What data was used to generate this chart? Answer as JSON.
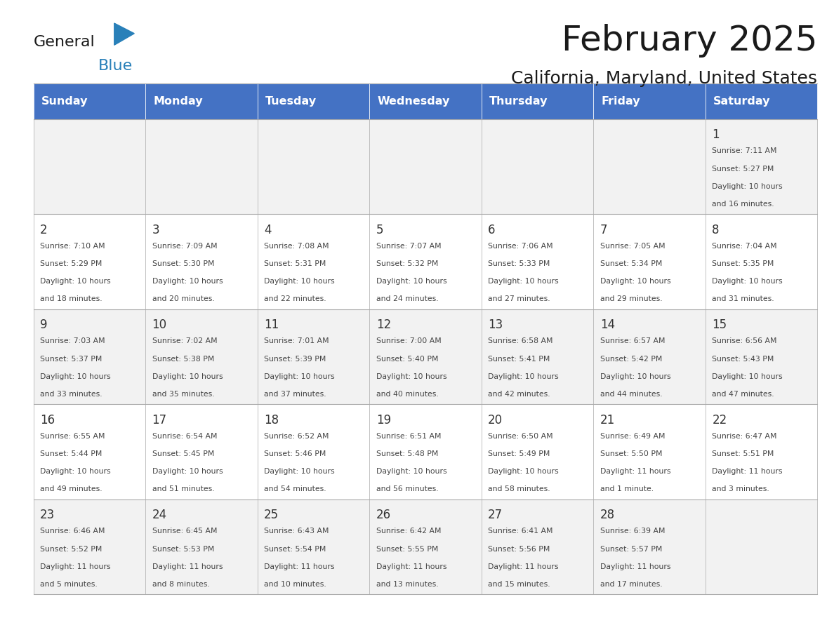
{
  "title": "February 2025",
  "subtitle": "California, Maryland, United States",
  "days_of_week": [
    "Sunday",
    "Monday",
    "Tuesday",
    "Wednesday",
    "Thursday",
    "Friday",
    "Saturday"
  ],
  "header_bg": "#4472C4",
  "header_text": "#FFFFFF",
  "row_bg_odd": "#F2F2F2",
  "row_bg_even": "#FFFFFF",
  "day_num_color": "#333333",
  "info_text_color": "#444444",
  "title_color": "#1a1a1a",
  "subtitle_color": "#1a1a1a",
  "logo_general_color": "#1a1a1a",
  "logo_blue_color": "#2980B9",
  "logo_triangle_color": "#2980B9",
  "weeks": [
    [
      {
        "day": null,
        "info": null
      },
      {
        "day": null,
        "info": null
      },
      {
        "day": null,
        "info": null
      },
      {
        "day": null,
        "info": null
      },
      {
        "day": null,
        "info": null
      },
      {
        "day": null,
        "info": null
      },
      {
        "day": 1,
        "info": "Sunrise: 7:11 AM\nSunset: 5:27 PM\nDaylight: 10 hours\nand 16 minutes."
      }
    ],
    [
      {
        "day": 2,
        "info": "Sunrise: 7:10 AM\nSunset: 5:29 PM\nDaylight: 10 hours\nand 18 minutes."
      },
      {
        "day": 3,
        "info": "Sunrise: 7:09 AM\nSunset: 5:30 PM\nDaylight: 10 hours\nand 20 minutes."
      },
      {
        "day": 4,
        "info": "Sunrise: 7:08 AM\nSunset: 5:31 PM\nDaylight: 10 hours\nand 22 minutes."
      },
      {
        "day": 5,
        "info": "Sunrise: 7:07 AM\nSunset: 5:32 PM\nDaylight: 10 hours\nand 24 minutes."
      },
      {
        "day": 6,
        "info": "Sunrise: 7:06 AM\nSunset: 5:33 PM\nDaylight: 10 hours\nand 27 minutes."
      },
      {
        "day": 7,
        "info": "Sunrise: 7:05 AM\nSunset: 5:34 PM\nDaylight: 10 hours\nand 29 minutes."
      },
      {
        "day": 8,
        "info": "Sunrise: 7:04 AM\nSunset: 5:35 PM\nDaylight: 10 hours\nand 31 minutes."
      }
    ],
    [
      {
        "day": 9,
        "info": "Sunrise: 7:03 AM\nSunset: 5:37 PM\nDaylight: 10 hours\nand 33 minutes."
      },
      {
        "day": 10,
        "info": "Sunrise: 7:02 AM\nSunset: 5:38 PM\nDaylight: 10 hours\nand 35 minutes."
      },
      {
        "day": 11,
        "info": "Sunrise: 7:01 AM\nSunset: 5:39 PM\nDaylight: 10 hours\nand 37 minutes."
      },
      {
        "day": 12,
        "info": "Sunrise: 7:00 AM\nSunset: 5:40 PM\nDaylight: 10 hours\nand 40 minutes."
      },
      {
        "day": 13,
        "info": "Sunrise: 6:58 AM\nSunset: 5:41 PM\nDaylight: 10 hours\nand 42 minutes."
      },
      {
        "day": 14,
        "info": "Sunrise: 6:57 AM\nSunset: 5:42 PM\nDaylight: 10 hours\nand 44 minutes."
      },
      {
        "day": 15,
        "info": "Sunrise: 6:56 AM\nSunset: 5:43 PM\nDaylight: 10 hours\nand 47 minutes."
      }
    ],
    [
      {
        "day": 16,
        "info": "Sunrise: 6:55 AM\nSunset: 5:44 PM\nDaylight: 10 hours\nand 49 minutes."
      },
      {
        "day": 17,
        "info": "Sunrise: 6:54 AM\nSunset: 5:45 PM\nDaylight: 10 hours\nand 51 minutes."
      },
      {
        "day": 18,
        "info": "Sunrise: 6:52 AM\nSunset: 5:46 PM\nDaylight: 10 hours\nand 54 minutes."
      },
      {
        "day": 19,
        "info": "Sunrise: 6:51 AM\nSunset: 5:48 PM\nDaylight: 10 hours\nand 56 minutes."
      },
      {
        "day": 20,
        "info": "Sunrise: 6:50 AM\nSunset: 5:49 PM\nDaylight: 10 hours\nand 58 minutes."
      },
      {
        "day": 21,
        "info": "Sunrise: 6:49 AM\nSunset: 5:50 PM\nDaylight: 11 hours\nand 1 minute."
      },
      {
        "day": 22,
        "info": "Sunrise: 6:47 AM\nSunset: 5:51 PM\nDaylight: 11 hours\nand 3 minutes."
      }
    ],
    [
      {
        "day": 23,
        "info": "Sunrise: 6:46 AM\nSunset: 5:52 PM\nDaylight: 11 hours\nand 5 minutes."
      },
      {
        "day": 24,
        "info": "Sunrise: 6:45 AM\nSunset: 5:53 PM\nDaylight: 11 hours\nand 8 minutes."
      },
      {
        "day": 25,
        "info": "Sunrise: 6:43 AM\nSunset: 5:54 PM\nDaylight: 11 hours\nand 10 minutes."
      },
      {
        "day": 26,
        "info": "Sunrise: 6:42 AM\nSunset: 5:55 PM\nDaylight: 11 hours\nand 13 minutes."
      },
      {
        "day": 27,
        "info": "Sunrise: 6:41 AM\nSunset: 5:56 PM\nDaylight: 11 hours\nand 15 minutes."
      },
      {
        "day": 28,
        "info": "Sunrise: 6:39 AM\nSunset: 5:57 PM\nDaylight: 11 hours\nand 17 minutes."
      },
      {
        "day": null,
        "info": null
      }
    ]
  ]
}
